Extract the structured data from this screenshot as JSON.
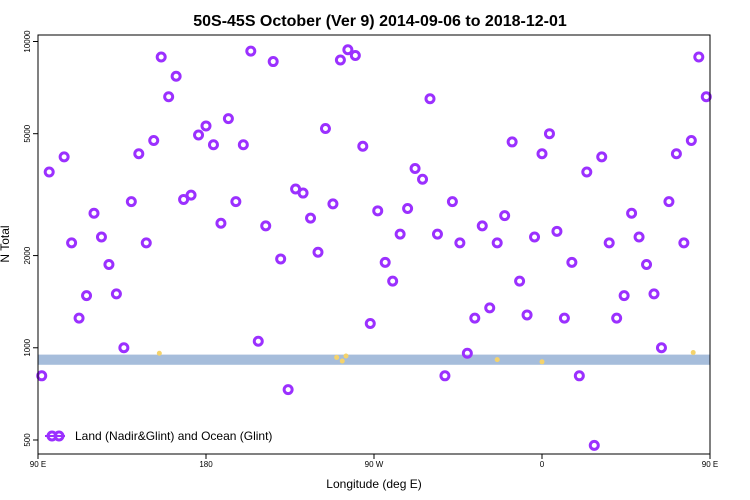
{
  "chart_data": {
    "type": "scatter",
    "title": "50S-45S October (Ver 9)   2014-09-06 to 2018-12-01",
    "xlabel": "Longitude (deg E)",
    "ylabel": "N Total",
    "xlim": [
      90,
      450
    ],
    "ylim": [
      450,
      10500
    ],
    "yscale": "log",
    "grid": false,
    "legend_position": "bottom-left",
    "x_ticks": [
      {
        "value": 90,
        "label": "90 E"
      },
      {
        "value": 180,
        "label": "180"
      },
      {
        "value": 270,
        "label": "90 W"
      },
      {
        "value": 360,
        "label": "0"
      },
      {
        "value": 450,
        "label": "90 E"
      },
      {
        "value": 540,
        "label": "180"
      }
    ],
    "y_ticks": [
      {
        "value": 500,
        "label": "500"
      },
      {
        "value": 1000,
        "label": "1000"
      },
      {
        "value": 2000,
        "label": "2000"
      },
      {
        "value": 5000,
        "label": "5000"
      },
      {
        "value": 10000,
        "label": "10000"
      }
    ],
    "band": {
      "y_low": 880,
      "y_high": 950,
      "color": "#a6bddb"
    },
    "series": [
      {
        "name": "Land (Nadir&Glint) and Ocean (Glint)",
        "color": "#9b30ff",
        "marker": "ring",
        "points": [
          {
            "x": 92,
            "y": 810
          },
          {
            "x": 96,
            "y": 3750
          },
          {
            "x": 104,
            "y": 4200
          },
          {
            "x": 108,
            "y": 2200
          },
          {
            "x": 112,
            "y": 1250
          },
          {
            "x": 116,
            "y": 1480
          },
          {
            "x": 120,
            "y": 2750
          },
          {
            "x": 124,
            "y": 2300
          },
          {
            "x": 128,
            "y": 1870
          },
          {
            "x": 132,
            "y": 1500
          },
          {
            "x": 136,
            "y": 1000
          },
          {
            "x": 140,
            "y": 3000
          },
          {
            "x": 144,
            "y": 4300
          },
          {
            "x": 148,
            "y": 2200
          },
          {
            "x": 152,
            "y": 4750
          },
          {
            "x": 156,
            "y": 8900
          },
          {
            "x": 160,
            "y": 6600
          },
          {
            "x": 164,
            "y": 7700
          },
          {
            "x": 168,
            "y": 3050
          },
          {
            "x": 172,
            "y": 3150
          },
          {
            "x": 176,
            "y": 4950
          },
          {
            "x": 180,
            "y": 5300
          },
          {
            "x": 184,
            "y": 4600
          },
          {
            "x": 188,
            "y": 2550
          },
          {
            "x": 192,
            "y": 5600
          },
          {
            "x": 196,
            "y": 3000
          },
          {
            "x": 200,
            "y": 4600
          },
          {
            "x": 204,
            "y": 9300
          },
          {
            "x": 208,
            "y": 1050
          },
          {
            "x": 212,
            "y": 2500
          },
          {
            "x": 216,
            "y": 8600
          },
          {
            "x": 220,
            "y": 1950
          },
          {
            "x": 224,
            "y": 730
          },
          {
            "x": 228,
            "y": 3300
          },
          {
            "x": 232,
            "y": 3200
          },
          {
            "x": 236,
            "y": 2650
          },
          {
            "x": 240,
            "y": 2050
          },
          {
            "x": 244,
            "y": 5200
          },
          {
            "x": 248,
            "y": 2950
          },
          {
            "x": 252,
            "y": 8700
          },
          {
            "x": 256,
            "y": 9400
          },
          {
            "x": 260,
            "y": 9000
          },
          {
            "x": 264,
            "y": 4550
          },
          {
            "x": 268,
            "y": 1200
          },
          {
            "x": 272,
            "y": 2800
          },
          {
            "x": 276,
            "y": 1900
          },
          {
            "x": 280,
            "y": 1650
          },
          {
            "x": 284,
            "y": 2350
          },
          {
            "x": 288,
            "y": 2850
          },
          {
            "x": 292,
            "y": 3850
          },
          {
            "x": 296,
            "y": 3550
          },
          {
            "x": 300,
            "y": 6500
          },
          {
            "x": 304,
            "y": 2350
          },
          {
            "x": 308,
            "y": 810
          },
          {
            "x": 312,
            "y": 3000
          },
          {
            "x": 316,
            "y": 2200
          },
          {
            "x": 320,
            "y": 960
          },
          {
            "x": 324,
            "y": 1250
          },
          {
            "x": 328,
            "y": 2500
          },
          {
            "x": 332,
            "y": 1350
          },
          {
            "x": 336,
            "y": 2200
          },
          {
            "x": 340,
            "y": 2700
          },
          {
            "x": 344,
            "y": 4700
          },
          {
            "x": 348,
            "y": 1650
          },
          {
            "x": 352,
            "y": 1280
          },
          {
            "x": 356,
            "y": 2300
          },
          {
            "x": 360,
            "y": 4300
          },
          {
            "x": 364,
            "y": 5000
          },
          {
            "x": 368,
            "y": 2400
          },
          {
            "x": 372,
            "y": 1250
          },
          {
            "x": 376,
            "y": 1900
          },
          {
            "x": 380,
            "y": 810
          },
          {
            "x": 384,
            "y": 3750
          },
          {
            "x": 388,
            "y": 480
          },
          {
            "x": 392,
            "y": 4200
          },
          {
            "x": 396,
            "y": 2200
          },
          {
            "x": 400,
            "y": 1250
          },
          {
            "x": 404,
            "y": 1480
          },
          {
            "x": 408,
            "y": 2750
          },
          {
            "x": 412,
            "y": 2300
          },
          {
            "x": 416,
            "y": 1870
          },
          {
            "x": 420,
            "y": 1500
          },
          {
            "x": 424,
            "y": 1000
          },
          {
            "x": 428,
            "y": 3000
          },
          {
            "x": 432,
            "y": 4300
          },
          {
            "x": 436,
            "y": 2200
          },
          {
            "x": 440,
            "y": 4750
          },
          {
            "x": 444,
            "y": 8900
          },
          {
            "x": 448,
            "y": 6600
          }
        ]
      },
      {
        "color": "#f5d36b",
        "marker": "dot",
        "points": [
          {
            "x": 155,
            "y": 960
          },
          {
            "x": 250,
            "y": 930
          },
          {
            "x": 253,
            "y": 905
          },
          {
            "x": 255,
            "y": 940
          },
          {
            "x": 336,
            "y": 915
          },
          {
            "x": 360,
            "y": 900
          },
          {
            "x": 441,
            "y": 965
          }
        ]
      }
    ]
  }
}
